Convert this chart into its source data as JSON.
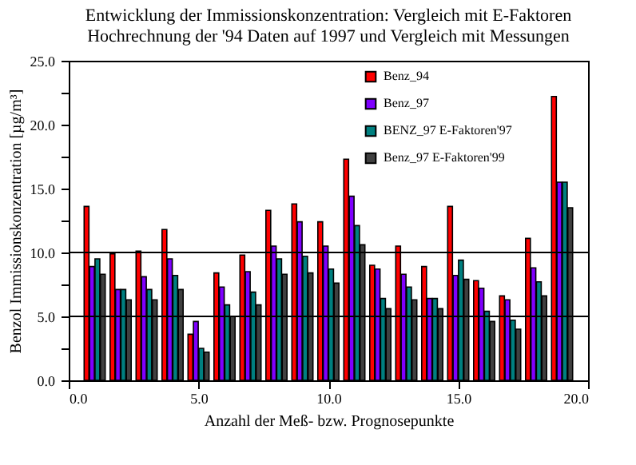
{
  "chart_data": {
    "type": "bar",
    "title": "Entwicklung der Immissionskonzentration: Vergleich mit E-Faktoren\nHochrechnung der '94 Daten auf 1997 und Vergleich mit Messungen",
    "xlabel": "Anzahl der Meß- bzw. Prognosepunkte",
    "ylabel": "Benzol Immissionskonzentration [µg/m³]",
    "x": [
      1,
      2,
      3,
      4,
      5,
      6,
      7,
      8,
      9,
      10,
      11,
      12,
      13,
      14,
      15,
      16,
      17,
      18,
      19
    ],
    "series": [
      {
        "name": "Benz_94",
        "color": "#ff0000",
        "values": [
          13.6,
          9.9,
          10.1,
          11.8,
          3.6,
          8.4,
          9.8,
          13.3,
          13.8,
          12.4,
          17.3,
          9.0,
          10.5,
          8.9,
          13.6,
          7.8,
          6.6,
          11.1,
          22.2
        ]
      },
      {
        "name": "Benz_97",
        "color": "#7f00ff",
        "values": [
          8.9,
          7.1,
          8.1,
          9.5,
          4.6,
          7.3,
          8.5,
          10.5,
          12.4,
          10.5,
          14.4,
          8.7,
          8.3,
          6.4,
          8.2,
          7.2,
          6.3,
          8.8,
          15.5
        ]
      },
      {
        "name": "BENZ_97 E-Faktoren'97",
        "color": "#008080",
        "values": [
          9.5,
          7.1,
          7.1,
          8.2,
          2.5,
          5.9,
          6.9,
          9.5,
          9.7,
          8.7,
          12.1,
          6.4,
          7.3,
          6.4,
          9.4,
          5.4,
          4.7,
          7.7,
          15.5
        ]
      },
      {
        "name": "Benz_97 E-Faktoren'99",
        "color": "#404040",
        "values": [
          8.3,
          6.3,
          6.3,
          7.1,
          2.2,
          5.0,
          5.9,
          8.3,
          8.4,
          7.6,
          10.6,
          5.6,
          6.3,
          5.6,
          7.9,
          4.6,
          4.0,
          6.6,
          13.5
        ]
      }
    ],
    "xlim": [
      0,
      20
    ],
    "xticks": [
      {
        "value": 0,
        "label": "0.0"
      },
      {
        "value": 5,
        "label": "5.0"
      },
      {
        "value": 10,
        "label": "10.0"
      },
      {
        "value": 15,
        "label": "15.0"
      },
      {
        "value": 20,
        "label": "20.0"
      }
    ],
    "ylim": [
      0,
      25
    ],
    "yticks": [
      {
        "value": 0,
        "label": "0.0"
      },
      {
        "value": 2.5,
        "label": null
      },
      {
        "value": 5,
        "label": "5.0"
      },
      {
        "value": 7.5,
        "label": null
      },
      {
        "value": 10,
        "label": "10.0"
      },
      {
        "value": 12.5,
        "label": null
      },
      {
        "value": 15,
        "label": "15.0"
      },
      {
        "value": 17.5,
        "label": null
      },
      {
        "value": 20,
        "label": "20.0"
      },
      {
        "value": 22.5,
        "label": null
      },
      {
        "value": 25,
        "label": "25.0"
      }
    ],
    "ref_lines": [
      {
        "axis": "y",
        "value": 5,
        "color": "#000000"
      },
      {
        "axis": "y",
        "value": 10,
        "color": "#000000"
      }
    ],
    "legend": "top right",
    "grid": false
  }
}
